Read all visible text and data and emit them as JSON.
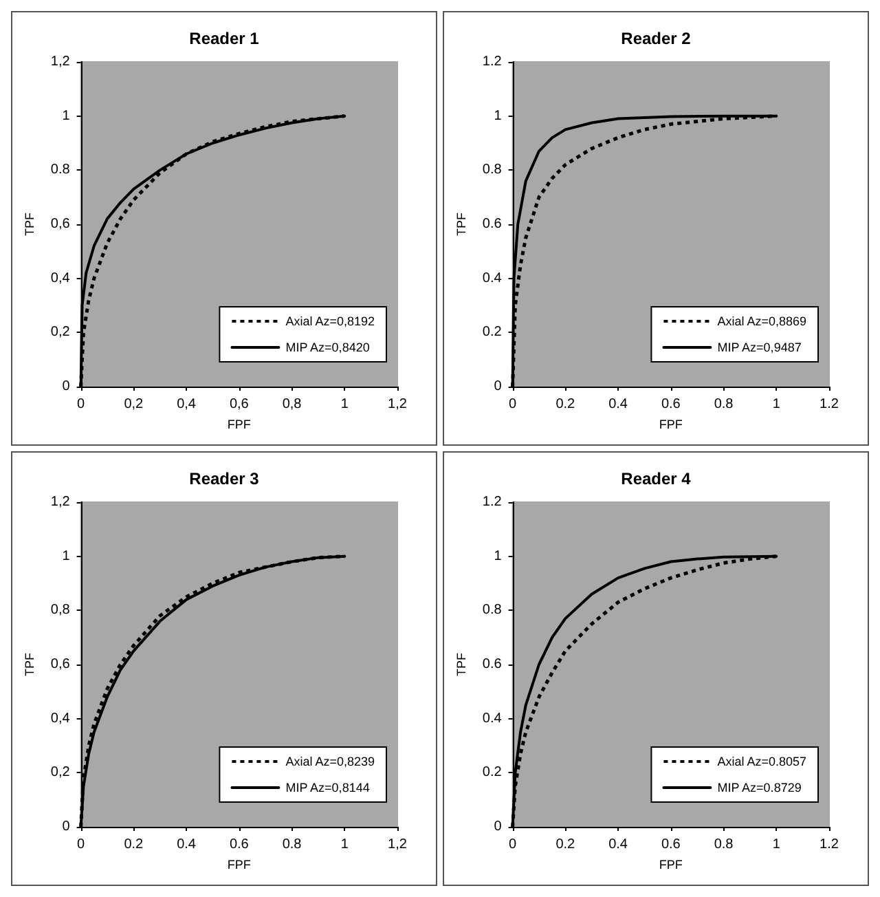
{
  "chart_data": [
    {
      "type": "line",
      "title": "Reader 1",
      "xlabel": "FPF",
      "ylabel": "TPF",
      "xlim": [
        0,
        1.2
      ],
      "ylim": [
        0,
        1.2
      ],
      "xticks": [
        0,
        {
          "value": 0.2,
          "label": "0,2"
        },
        {
          "value": 0.4,
          "label": "0,4"
        },
        {
          "value": 0.6,
          "label": "0,6"
        },
        {
          "value": 0.8,
          "label": "0,8"
        },
        1,
        {
          "value": 1.2,
          "label": "1,2"
        }
      ],
      "yticks": [
        0,
        {
          "value": 0.2,
          "label": "0,2"
        },
        {
          "value": 0.4,
          "label": "0,4"
        },
        {
          "value": 0.6,
          "label": "0,6"
        },
        0.8,
        1,
        {
          "value": 1.2,
          "label": "1,2"
        }
      ],
      "legend": "bottom right",
      "series": [
        {
          "name": "Axial Az=0,8192",
          "color": "#000000",
          "line_style": "dotted",
          "x": [
            0,
            0.01,
            0.03,
            0.05,
            0.1,
            0.15,
            0.2,
            0.3,
            0.4,
            0.5,
            0.6,
            0.7,
            0.8,
            0.9,
            1
          ],
          "values": [
            0,
            0.2,
            0.32,
            0.4,
            0.53,
            0.62,
            0.69,
            0.79,
            0.86,
            0.905,
            0.935,
            0.96,
            0.98,
            0.99,
            1
          ]
        },
        {
          "name": "MIP Az=0,8420",
          "color": "#000000",
          "line_style": "solid",
          "x": [
            0,
            0.005,
            0.02,
            0.05,
            0.1,
            0.15,
            0.2,
            0.3,
            0.4,
            0.5,
            0.6,
            0.7,
            0.8,
            0.9,
            1
          ],
          "values": [
            0,
            0.3,
            0.42,
            0.52,
            0.62,
            0.68,
            0.73,
            0.8,
            0.86,
            0.9,
            0.93,
            0.955,
            0.975,
            0.99,
            1
          ]
        }
      ]
    },
    {
      "type": "line",
      "title": "Reader 2",
      "xlabel": "FPF",
      "ylabel": "TPF",
      "xlim": [
        0,
        1.2
      ],
      "ylim": [
        0,
        1.2
      ],
      "xticks": [
        0,
        0.2,
        0.4,
        0.6,
        0.8,
        1,
        1.2
      ],
      "yticks": [
        0,
        0.2,
        0.4,
        0.6,
        0.8,
        1,
        1.2
      ],
      "legend": "bottom right",
      "series": [
        {
          "name": "Axial Az=0,8869",
          "color": "#000000",
          "line_style": "dotted",
          "x": [
            0,
            0.01,
            0.03,
            0.05,
            0.1,
            0.15,
            0.2,
            0.3,
            0.4,
            0.5,
            0.6,
            0.8,
            1
          ],
          "values": [
            0,
            0.3,
            0.45,
            0.55,
            0.7,
            0.77,
            0.82,
            0.88,
            0.92,
            0.95,
            0.97,
            0.99,
            1
          ]
        },
        {
          "name": "MIP Az=0,9487",
          "color": "#000000",
          "line_style": "solid",
          "x": [
            0,
            0.005,
            0.02,
            0.05,
            0.1,
            0.15,
            0.2,
            0.3,
            0.4,
            0.6,
            0.8,
            1
          ],
          "values": [
            0,
            0.4,
            0.6,
            0.76,
            0.87,
            0.92,
            0.95,
            0.975,
            0.99,
            0.998,
            1,
            1
          ]
        }
      ]
    },
    {
      "type": "line",
      "title": "Reader 3",
      "xlabel": "FPF",
      "ylabel": "TPF",
      "xlim": [
        0,
        1.2
      ],
      "ylim": [
        0,
        1.2
      ],
      "xticks": [
        0,
        0.2,
        0.4,
        0.6,
        0.8,
        1,
        {
          "value": 1.2,
          "label": "1,2"
        }
      ],
      "yticks": [
        0,
        {
          "value": 0.2,
          "label": "0,2"
        },
        {
          "value": 0.4,
          "label": "0,4"
        },
        {
          "value": 0.6,
          "label": "0,6"
        },
        {
          "value": 0.8,
          "label": "0,8"
        },
        1,
        {
          "value": 1.2,
          "label": "1,2"
        }
      ],
      "legend": "bottom right",
      "series": [
        {
          "name": "Axial Az=0,8239",
          "color": "#000000",
          "line_style": "dotted",
          "x": [
            0,
            0.01,
            0.03,
            0.05,
            0.1,
            0.15,
            0.2,
            0.3,
            0.4,
            0.5,
            0.6,
            0.7,
            0.8,
            0.9,
            1
          ],
          "values": [
            0,
            0.18,
            0.3,
            0.38,
            0.51,
            0.6,
            0.67,
            0.78,
            0.85,
            0.9,
            0.94,
            0.96,
            0.98,
            0.995,
            1
          ]
        },
        {
          "name": "MIP Az=0,8144",
          "color": "#000000",
          "line_style": "solid",
          "x": [
            0,
            0.01,
            0.03,
            0.05,
            0.1,
            0.15,
            0.2,
            0.3,
            0.4,
            0.5,
            0.6,
            0.7,
            0.8,
            0.9,
            1
          ],
          "values": [
            0,
            0.15,
            0.27,
            0.35,
            0.48,
            0.58,
            0.65,
            0.76,
            0.84,
            0.89,
            0.93,
            0.96,
            0.98,
            0.995,
            1
          ]
        }
      ]
    },
    {
      "type": "line",
      "title": "Reader 4",
      "xlabel": "FPF",
      "ylabel": "TPF",
      "xlim": [
        0,
        1.2
      ],
      "ylim": [
        0,
        1.2
      ],
      "xticks": [
        0,
        0.2,
        0.4,
        0.6,
        0.8,
        1,
        1.2
      ],
      "yticks": [
        0,
        0.2,
        0.4,
        0.6,
        0.8,
        1,
        1.2
      ],
      "legend": "bottom right",
      "series": [
        {
          "name": "Axial Az=0.8057",
          "color": "#000000",
          "line_style": "dotted",
          "x": [
            0,
            0.01,
            0.03,
            0.05,
            0.1,
            0.15,
            0.2,
            0.3,
            0.4,
            0.5,
            0.6,
            0.7,
            0.8,
            0.9,
            1
          ],
          "values": [
            0,
            0.15,
            0.27,
            0.35,
            0.48,
            0.57,
            0.65,
            0.75,
            0.83,
            0.88,
            0.92,
            0.95,
            0.975,
            0.99,
            1
          ]
        },
        {
          "name": "MIP Az=0.8729",
          "color": "#000000",
          "line_style": "solid",
          "x": [
            0,
            0.01,
            0.03,
            0.05,
            0.1,
            0.15,
            0.2,
            0.3,
            0.4,
            0.5,
            0.6,
            0.7,
            0.8,
            1
          ],
          "values": [
            0,
            0.2,
            0.35,
            0.45,
            0.6,
            0.7,
            0.77,
            0.86,
            0.92,
            0.955,
            0.98,
            0.99,
            0.997,
            1
          ]
        }
      ]
    }
  ]
}
